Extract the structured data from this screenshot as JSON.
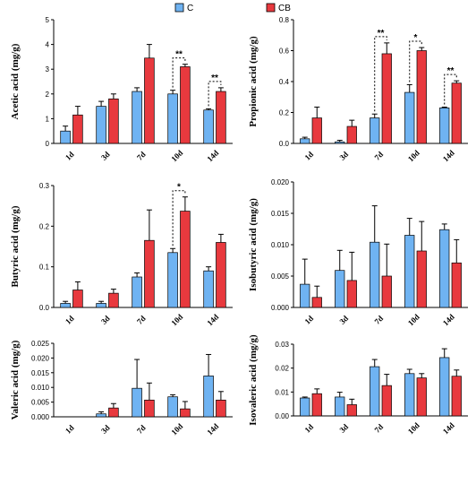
{
  "legend": {
    "position": "top-center",
    "items": [
      {
        "label": "C",
        "color": "#6fb3f2"
      },
      {
        "label": "CB",
        "color": "#e8393e"
      }
    ]
  },
  "chart_data": [
    {
      "type": "bar",
      "ylabel": "Acetic acid (mg/g)",
      "categories": [
        "1d",
        "3d",
        "7d",
        "10d",
        "14d"
      ],
      "ylim": [
        0,
        5
      ],
      "yticks": [
        "0",
        "1",
        "2",
        "3",
        "4",
        "5"
      ],
      "series": [
        {
          "name": "C",
          "values": [
            0.5,
            1.5,
            2.1,
            2.0,
            1.35
          ],
          "errors": [
            0.2,
            0.2,
            0.15,
            0.15,
            0.05
          ]
        },
        {
          "name": "CB",
          "values": [
            1.15,
            1.8,
            3.45,
            3.1,
            2.1
          ],
          "errors": [
            0.35,
            0.2,
            0.55,
            0.1,
            0.15
          ]
        }
      ],
      "annotations": [
        {
          "category": "10d",
          "text": "**"
        },
        {
          "category": "14d",
          "text": "**"
        }
      ]
    },
    {
      "type": "bar",
      "ylabel": "Propionic acid (mg/g)",
      "categories": [
        "1d",
        "3d",
        "7d",
        "10d",
        "14d"
      ],
      "ylim": [
        0,
        0.8
      ],
      "yticks": [
        "0.0",
        "0.2",
        "0.4",
        "0.6",
        "0.8"
      ],
      "series": [
        {
          "name": "C",
          "values": [
            0.03,
            0.01,
            0.165,
            0.33,
            0.23
          ],
          "errors": [
            0.01,
            0.01,
            0.025,
            0.05,
            0.005
          ]
        },
        {
          "name": "CB",
          "values": [
            0.165,
            0.11,
            0.58,
            0.6,
            0.39
          ],
          "errors": [
            0.07,
            0.04,
            0.07,
            0.02,
            0.015
          ]
        }
      ],
      "annotations": [
        {
          "category": "7d",
          "text": "**"
        },
        {
          "category": "10d",
          "text": "*"
        },
        {
          "category": "14d",
          "text": "**"
        }
      ]
    },
    {
      "type": "bar",
      "ylabel": "Butyric acid (mg/g)",
      "categories": [
        "1d",
        "3d",
        "7d",
        "10d",
        "14d"
      ],
      "ylim": [
        0,
        0.3
      ],
      "yticks": [
        "0.0",
        "0.1",
        "0.2",
        "0.3"
      ],
      "series": [
        {
          "name": "C",
          "values": [
            0.01,
            0.01,
            0.075,
            0.135,
            0.09
          ],
          "errors": [
            0.005,
            0.005,
            0.01,
            0.01,
            0.01
          ]
        },
        {
          "name": "CB",
          "values": [
            0.043,
            0.035,
            0.165,
            0.237,
            0.16
          ],
          "errors": [
            0.02,
            0.01,
            0.075,
            0.035,
            0.02
          ]
        }
      ],
      "annotations": [
        {
          "category": "10d",
          "text": "*"
        }
      ]
    },
    {
      "type": "bar",
      "ylabel": "Isobutyric acid (mg/g)",
      "categories": [
        "1d",
        "3d",
        "7d",
        "10d",
        "14d"
      ],
      "ylim": [
        0,
        0.02
      ],
      "yticks": [
        "0.000",
        "0.005",
        "0.010",
        "0.015",
        "0.020"
      ],
      "series": [
        {
          "name": "C",
          "values": [
            0.0037,
            0.0059,
            0.0104,
            0.0115,
            0.0124
          ],
          "errors": [
            0.004,
            0.0032,
            0.0058,
            0.0027,
            0.0009
          ]
        },
        {
          "name": "CB",
          "values": [
            0.0016,
            0.0043,
            0.005,
            0.009,
            0.0071
          ],
          "errors": [
            0.0018,
            0.0045,
            0.0051,
            0.0047,
            0.0037
          ]
        }
      ],
      "annotations": []
    },
    {
      "type": "bar",
      "ylabel": "Valeric acid (mg/g)",
      "categories": [
        "1d",
        "3d",
        "7d",
        "10d",
        "14d"
      ],
      "ylim": [
        0,
        0.025
      ],
      "yticks": [
        "0.000",
        "0.005",
        "0.010",
        "0.015",
        "0.020",
        "0.025"
      ],
      "series": [
        {
          "name": "C",
          "values": [
            0,
            0.001,
            0.0097,
            0.0068,
            0.0139
          ],
          "errors": [
            0,
            0.0007,
            0.0098,
            0.0007,
            0.0073
          ]
        },
        {
          "name": "CB",
          "values": [
            0,
            0.003,
            0.0057,
            0.0027,
            0.0057
          ],
          "errors": [
            0,
            0.0015,
            0.0058,
            0.0025,
            0.0029
          ]
        }
      ],
      "annotations": []
    },
    {
      "type": "bar",
      "ylabel": "Isovaleric acid (mg/g)",
      "categories": [
        "1d",
        "3d",
        "7d",
        "10d",
        "14d"
      ],
      "ylim": [
        0,
        0.03
      ],
      "yticks": [
        "0.00",
        "0.01",
        "0.02",
        "0.03"
      ],
      "series": [
        {
          "name": "C",
          "values": [
            0.0075,
            0.0079,
            0.0206,
            0.0177,
            0.0244
          ],
          "errors": [
            0.0004,
            0.002,
            0.003,
            0.0018,
            0.0037
          ]
        },
        {
          "name": "CB",
          "values": [
            0.0093,
            0.0047,
            0.0127,
            0.0159,
            0.0166
          ],
          "errors": [
            0.002,
            0.0023,
            0.0047,
            0.0018,
            0.0026
          ]
        }
      ],
      "annotations": []
    }
  ]
}
